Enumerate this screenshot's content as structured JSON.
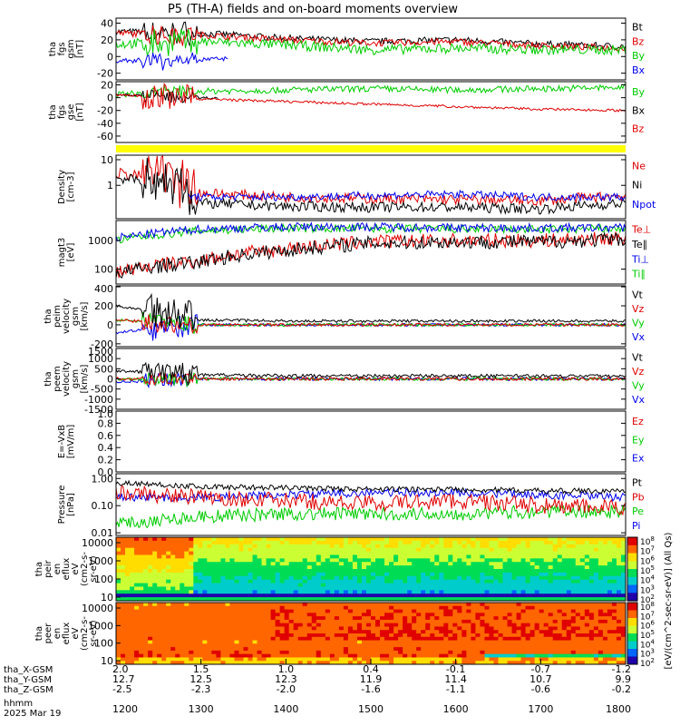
{
  "title": "P5 (TH-A) fields and on-board moments overview",
  "colors": {
    "black": "#000000",
    "red": "#e00000",
    "green": "#00cc00",
    "blue": "#0000ee",
    "yellow": "#ffff00"
  },
  "chart_data": {
    "type": "line",
    "x_axis": {
      "label": "hhmm",
      "range": [
        1200,
        1800
      ],
      "ticks": [
        "1200",
        "1300",
        "1400",
        "1500",
        "1600",
        "1700",
        "1800"
      ],
      "date": "2025 Mar 19"
    },
    "orbit_rows": [
      {
        "label": "tha_X-GSM",
        "values": [
          "2.0",
          "1.5",
          "1.0",
          "0.4",
          "-0.1",
          "-0.7",
          "-1.2"
        ]
      },
      {
        "label": "tha_Y-GSM",
        "values": [
          "12.7",
          "12.5",
          "12.3",
          "11.9",
          "11.4",
          "10.7",
          "9.9"
        ]
      },
      {
        "label": "tha_Z-GSM",
        "values": [
          "-2.5",
          "-2.3",
          "-2.0",
          "-1.6",
          "-1.1",
          "-0.6",
          "-0.2"
        ]
      }
    ],
    "panels": [
      {
        "id": "fgs-gsm",
        "ylabel": [
          "tha",
          "fgs",
          "gsm",
          "[nT]"
        ],
        "yticks": [
          "40",
          "20",
          "0",
          "-20"
        ],
        "ylim": [
          -28,
          46
        ],
        "scale": "linear",
        "legend": [
          {
            "text": "Bt",
            "color": "black"
          },
          {
            "text": "Bz",
            "color": "red"
          },
          {
            "text": "By",
            "color": "green"
          },
          {
            "text": "Bx",
            "color": "blue"
          }
        ],
        "series": [
          {
            "name": "Bt",
            "color": "black",
            "base": 20,
            "noise": 4,
            "early": 12,
            "profile": [
              30,
              28,
              22,
              18,
              20,
              15,
              12
            ]
          },
          {
            "name": "Bz",
            "color": "red",
            "base": 20,
            "noise": 4,
            "early": 12,
            "profile": [
              28,
              26,
              20,
              16,
              18,
              13,
              10
            ]
          },
          {
            "name": "By",
            "color": "green",
            "base": 8,
            "noise": 6,
            "early": 14,
            "profile": [
              15,
              18,
              14,
              8,
              10,
              8,
              8
            ]
          },
          {
            "name": "Bx",
            "color": "blue",
            "base": 0,
            "noise": 3,
            "early": 10,
            "profile": [
              -5,
              -4,
              0,
              4,
              5,
              5,
              4
            ],
            "end": 0.22
          }
        ]
      },
      {
        "id": "fgs-gse",
        "ylabel": [
          "tha",
          "fgs",
          "gse",
          "[nT]"
        ],
        "yticks": [
          "20",
          "0",
          "-20",
          "-40",
          "-60"
        ],
        "ylim": [
          -70,
          25
        ],
        "scale": "linear",
        "legend": [
          {
            "text": "By",
            "color": "green"
          },
          {
            "text": "Bx",
            "color": "black"
          },
          {
            "text": "Bz",
            "color": "red"
          }
        ],
        "series": [
          {
            "name": "By",
            "color": "green",
            "base": 8,
            "noise": 5,
            "early": 10,
            "profile": [
              5,
              10,
              12,
              14,
              12,
              14,
              16
            ]
          },
          {
            "name": "Bx",
            "color": "black",
            "base": 0,
            "noise": 2,
            "early": 10,
            "profile": [
              5,
              0,
              -2,
              -2,
              -2,
              -2,
              -2
            ],
            "end": 0.2
          },
          {
            "name": "Bz",
            "color": "red",
            "base": -5,
            "noise": 2,
            "early": 20,
            "profile": [
              5,
              -2,
              -6,
              -10,
              -14,
              -18,
              -20
            ]
          }
        ]
      },
      {
        "id": "density",
        "ylabel": [
          "Density",
          "[cm-3]"
        ],
        "yticks": [
          "10",
          "1"
        ],
        "ylim": [
          0.05,
          15
        ],
        "scale": "log",
        "legend": [
          {
            "text": "Ne",
            "color": "red"
          },
          {
            "text": "Ni",
            "color": "black"
          },
          {
            "text": "Npot",
            "color": "blue"
          }
        ],
        "series": [
          {
            "name": "Ne",
            "color": "red",
            "base": 0.3,
            "noise": 0.2,
            "early": 4,
            "profile": [
              3,
              0.5,
              0.35,
              0.3,
              0.28,
              0.25,
              0.4
            ]
          },
          {
            "name": "Ni",
            "color": "black",
            "base": 0.15,
            "noise": 0.2,
            "early": 3,
            "profile": [
              2,
              0.2,
              0.15,
              0.14,
              0.14,
              0.12,
              0.2
            ]
          },
          {
            "name": "Npot",
            "color": "blue",
            "base": 0.3,
            "noise": 0.15,
            "early": 0,
            "profile": [
              0.6,
              0.35,
              0.35,
              0.4,
              0.45,
              0.35,
              0.35
            ],
            "start": 0.14
          }
        ]
      },
      {
        "id": "temperature",
        "ylabel": [
          "magt3",
          "[eV]"
        ],
        "yticks": [
          "1000",
          "100"
        ],
        "ylim": [
          30,
          5000
        ],
        "scale": "log",
        "legend": [
          {
            "text": "Te⊥",
            "color": "red"
          },
          {
            "text": "Te∥",
            "color": "black"
          },
          {
            "text": "Ti⊥",
            "color": "blue"
          },
          {
            "text": "Ti∥",
            "color": "green"
          }
        ],
        "series": [
          {
            "name": "Ti∥",
            "color": "green",
            "base": 2500,
            "noise": 0.15,
            "early": 0,
            "profile": [
              1000,
              2200,
              2700,
              2600,
              2500,
              2400,
              2600
            ]
          },
          {
            "name": "Ti⊥",
            "color": "blue",
            "base": 2500,
            "noise": 0.15,
            "early": 0,
            "profile": [
              1200,
              2500,
              3000,
              3000,
              2800,
              2700,
              2800
            ]
          },
          {
            "name": "Te⊥",
            "color": "red",
            "base": 500,
            "noise": 0.25,
            "early": 0,
            "profile": [
              80,
              200,
              500,
              900,
              1000,
              1000,
              1200
            ]
          },
          {
            "name": "Te∥",
            "color": "black",
            "base": 500,
            "noise": 0.25,
            "early": 0,
            "profile": [
              70,
              180,
              450,
              800,
              900,
              900,
              1100
            ]
          }
        ]
      },
      {
        "id": "peim-velocity",
        "ylabel": [
          "tha",
          "peim",
          "velocity",
          "gsm",
          "[km/s]"
        ],
        "yticks": [
          "400",
          "200",
          "0",
          "-200"
        ],
        "ylim": [
          -230,
          410
        ],
        "scale": "linear",
        "legend": [
          {
            "text": "Vt",
            "color": "black"
          },
          {
            "text": "Vz",
            "color": "red"
          },
          {
            "text": "Vy",
            "color": "green"
          },
          {
            "text": "Vx",
            "color": "blue"
          }
        ],
        "series": [
          {
            "name": "Vx",
            "color": "blue",
            "base": 0,
            "noise": 15,
            "early": 120,
            "profile": [
              -80,
              0,
              0,
              0,
              0,
              0,
              0
            ]
          },
          {
            "name": "Vy",
            "color": "green",
            "base": 0,
            "noise": 15,
            "early": 100,
            "profile": [
              50,
              0,
              0,
              0,
              0,
              0,
              0
            ]
          },
          {
            "name": "Vz",
            "color": "red",
            "base": 0,
            "noise": 15,
            "early": 100,
            "profile": [
              50,
              0,
              0,
              0,
              0,
              0,
              0
            ]
          },
          {
            "name": "Vt",
            "color": "black",
            "base": 30,
            "noise": 15,
            "early": 180,
            "profile": [
              200,
              50,
              40,
              40,
              40,
              40,
              40
            ]
          }
        ]
      },
      {
        "id": "peem-velocity",
        "ylabel": [
          "tha",
          "peem",
          "velocity",
          "gsm",
          "[km/s]"
        ],
        "yticks": [
          "1500",
          "1000",
          "500",
          "0",
          "-500",
          "-1000",
          "-1500"
        ],
        "ylim": [
          -1500,
          1500
        ],
        "scale": "linear",
        "legend": [
          {
            "text": "Vt",
            "color": "black"
          },
          {
            "text": "Vz",
            "color": "red"
          },
          {
            "text": "Vy",
            "color": "green"
          },
          {
            "text": "Vx",
            "color": "blue"
          }
        ],
        "series": [
          {
            "name": "Vx",
            "color": "blue",
            "base": 0,
            "noise": 80,
            "early": 350,
            "profile": [
              -150,
              0,
              0,
              0,
              0,
              0,
              0
            ]
          },
          {
            "name": "Vy",
            "color": "green",
            "base": 0,
            "noise": 80,
            "early": 300,
            "profile": [
              0,
              0,
              0,
              0,
              0,
              0,
              0
            ]
          },
          {
            "name": "Vz",
            "color": "red",
            "base": 0,
            "noise": 80,
            "early": 300,
            "profile": [
              0,
              0,
              0,
              0,
              0,
              0,
              0
            ]
          },
          {
            "name": "Vt",
            "color": "black",
            "base": 150,
            "noise": 80,
            "early": 500,
            "profile": [
              400,
              200,
              150,
              150,
              150,
              150,
              150
            ]
          }
        ]
      },
      {
        "id": "efield",
        "ylabel": [
          "E=-VxB",
          "[mV/m]"
        ],
        "yticks": [
          "1.0",
          "0.8",
          "0.6",
          "0.4",
          "0.2",
          "0.0"
        ],
        "ylim": [
          0,
          1
        ],
        "scale": "linear",
        "legend": [
          {
            "text": "Ez",
            "color": "red"
          },
          {
            "text": "Ey",
            "color": "green"
          },
          {
            "text": "Ex",
            "color": "blue"
          }
        ],
        "series": []
      },
      {
        "id": "pressure",
        "ylabel": [
          "Pressure",
          "[nPa]"
        ],
        "yticks": [
          "1.00",
          "0.10",
          "0.01"
        ],
        "ylim": [
          0.008,
          1.5
        ],
        "scale": "log",
        "legend": [
          {
            "text": "Pt",
            "color": "black"
          },
          {
            "text": "Pb",
            "color": "red"
          },
          {
            "text": "Pe",
            "color": "green"
          },
          {
            "text": "Pi",
            "color": "blue"
          }
        ],
        "series": [
          {
            "name": "Pe",
            "color": "green",
            "base": 0.04,
            "noise": 0.25,
            "early": 0,
            "profile": [
              0.02,
              0.04,
              0.05,
              0.05,
              0.05,
              0.06,
              0.06
            ]
          },
          {
            "name": "Pi",
            "color": "blue",
            "base": 0.2,
            "noise": 0.15,
            "early": 0,
            "profile": [
              0.2,
              0.2,
              0.25,
              0.3,
              0.3,
              0.25,
              0.2
            ]
          },
          {
            "name": "Pb",
            "color": "red",
            "base": 0.12,
            "noise": 0.3,
            "early": 0,
            "profile": [
              0.3,
              0.2,
              0.15,
              0.12,
              0.15,
              0.1,
              0.08
            ]
          },
          {
            "name": "Pt",
            "color": "black",
            "base": 0.4,
            "noise": 0.1,
            "early": 0,
            "profile": [
              0.7,
              0.5,
              0.45,
              0.4,
              0.4,
              0.35,
              0.35
            ]
          }
        ]
      }
    ],
    "spectrograms": [
      {
        "id": "peir",
        "ylabel": [
          "tha",
          "peir",
          "en",
          "eflux",
          "eV",
          "(cm2-s-",
          "sr-eV)"
        ],
        "yticks": [
          "10000",
          "1000",
          "100",
          "10"
        ]
      },
      {
        "id": "peer",
        "ylabel": [
          "tha",
          "peer",
          "en",
          "eflux",
          "eV",
          "(cm2-s-",
          "sr-eV)"
        ],
        "yticks": [
          "10000",
          "1000",
          "100",
          "10"
        ]
      }
    ],
    "colorbar": {
      "label": "[eV/(cm^2-sec-sr-eV)] (All Qs)",
      "ticks": [
        "10^8",
        "10^7",
        "10^6",
        "10^5",
        "10^4",
        "10^3",
        "10^2"
      ],
      "colors": [
        "#ffffff",
        "#e00000",
        "#ff6600",
        "#ffdd00",
        "#ccff33",
        "#00dd55",
        "#00cccc",
        "#0066ff",
        "#2000aa"
      ]
    }
  }
}
